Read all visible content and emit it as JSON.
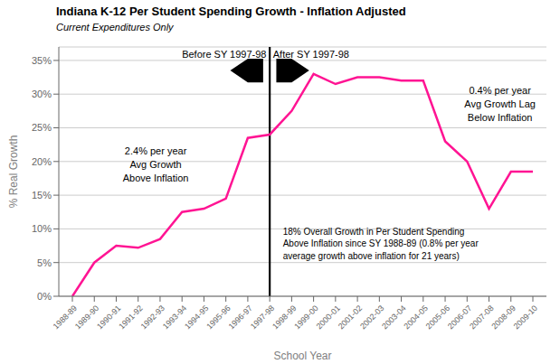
{
  "chart_data": {
    "type": "line",
    "title": "Indiana K-12 Per Student Spending Growth - Inflation Adjusted",
    "subtitle": "Current Expenditures Only",
    "x_label": "School Year",
    "y_label": "% Real Growth",
    "categories": [
      "1988-89",
      "1989-90",
      "1990-91",
      "1991-92",
      "1992-93",
      "1993-94",
      "1994-95",
      "1995-96",
      "1996-97",
      "1997-98",
      "1998-99",
      "1999-00",
      "2000-01",
      "2001-02",
      "2002-03",
      "2003-04",
      "2004-05",
      "2005-06",
      "2006-07",
      "2007-08",
      "2008-09",
      "2009-10"
    ],
    "values": [
      0.0,
      5.0,
      7.5,
      7.2,
      8.5,
      12.5,
      13.0,
      14.5,
      23.5,
      24.0,
      27.5,
      33.0,
      31.5,
      32.5,
      32.5,
      32.0,
      32.0,
      23.0,
      20.0,
      13.0,
      18.5,
      18.5
    ],
    "color": "#FF1493",
    "ylim": [
      0,
      37
    ],
    "yticks": [
      {
        "value": 0,
        "label": "0%"
      },
      {
        "value": 5,
        "label": "5%"
      },
      {
        "value": 10,
        "label": "10%"
      },
      {
        "value": 15,
        "label": "15%"
      },
      {
        "value": 20,
        "label": "20%"
      },
      {
        "value": 25,
        "label": "25%"
      },
      {
        "value": 30,
        "label": "30%"
      },
      {
        "value": 35,
        "label": "35%"
      }
    ],
    "grid": true,
    "divider": "1997-98",
    "annotations": [
      "Before SY 1997-98",
      "After SY 1997-98",
      "2.4% per year\nAvg Growth\nAbove Inflation",
      "0.4% per year\nAvg Growth Lag\nBelow Inflation",
      "18% Overall Growth in Per Student Spending\nAbove Inflation since SY 1988-89 (0.8% per year\naverage growth above inflation for 21 years)"
    ]
  }
}
